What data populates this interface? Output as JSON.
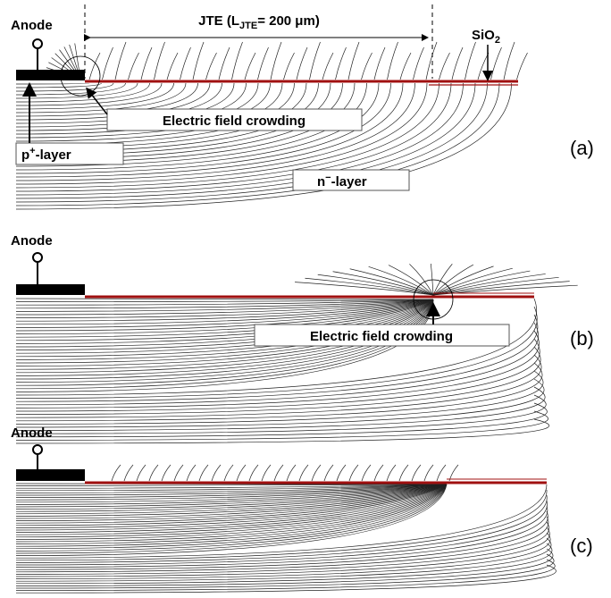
{
  "panels": [
    {
      "label": "(a)",
      "anode": "Anode",
      "jte": [
        "JTE (L",
        "JTE",
        "= 200 μm)"
      ],
      "oxide": [
        "SiO",
        "2"
      ],
      "crowding": "Electric field crowding",
      "p_layer": [
        "p",
        "+",
        "-layer"
      ],
      "n_layer": [
        "n",
        "−",
        "-layer"
      ]
    },
    {
      "label": "(b)",
      "anode": "Anode",
      "crowding": "Electric field crowding"
    },
    {
      "label": "(c)",
      "anode": "Anode"
    }
  ]
}
